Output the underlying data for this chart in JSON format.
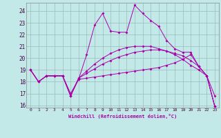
{
  "xlabel": "Windchill (Refroidissement éolien,°C)",
  "xlim": [
    -0.5,
    23.5
  ],
  "ylim": [
    15.8,
    24.7
  ],
  "xticks": [
    0,
    1,
    2,
    3,
    4,
    5,
    6,
    7,
    8,
    9,
    10,
    11,
    12,
    13,
    14,
    15,
    16,
    17,
    18,
    19,
    20,
    21,
    22,
    23
  ],
  "yticks": [
    16,
    17,
    18,
    19,
    20,
    21,
    22,
    23,
    24
  ],
  "bg_color": "#c2e8e8",
  "line_color": "#aa00aa",
  "grid_color": "#99bbbb",
  "lines": [
    [
      19,
      18,
      18.5,
      18.5,
      18.5,
      17.0,
      18.2,
      20.3,
      22.8,
      23.8,
      22.3,
      22.2,
      22.2,
      24.5,
      23.8,
      23.2,
      22.7,
      21.5,
      20.8,
      20.5,
      20.5,
      19.3,
      18.5,
      16.8
    ],
    [
      19,
      18,
      18.5,
      18.5,
      18.5,
      16.8,
      18.2,
      18.3,
      18.4,
      18.5,
      18.6,
      18.7,
      18.8,
      18.9,
      19.0,
      19.1,
      19.2,
      19.4,
      19.6,
      19.9,
      20.3,
      19.3,
      18.5,
      15.9
    ],
    [
      19,
      18,
      18.5,
      18.5,
      18.5,
      16.8,
      18.3,
      18.7,
      19.1,
      19.5,
      19.8,
      20.1,
      20.3,
      20.5,
      20.6,
      20.7,
      20.7,
      20.6,
      20.4,
      20.2,
      19.8,
      19.3,
      18.5,
      15.9
    ],
    [
      19,
      18,
      18.5,
      18.5,
      18.5,
      16.8,
      18.3,
      18.9,
      19.5,
      20.0,
      20.4,
      20.7,
      20.9,
      21.0,
      21.0,
      21.0,
      20.8,
      20.6,
      20.3,
      19.9,
      19.4,
      19.0,
      18.5,
      15.9
    ]
  ]
}
